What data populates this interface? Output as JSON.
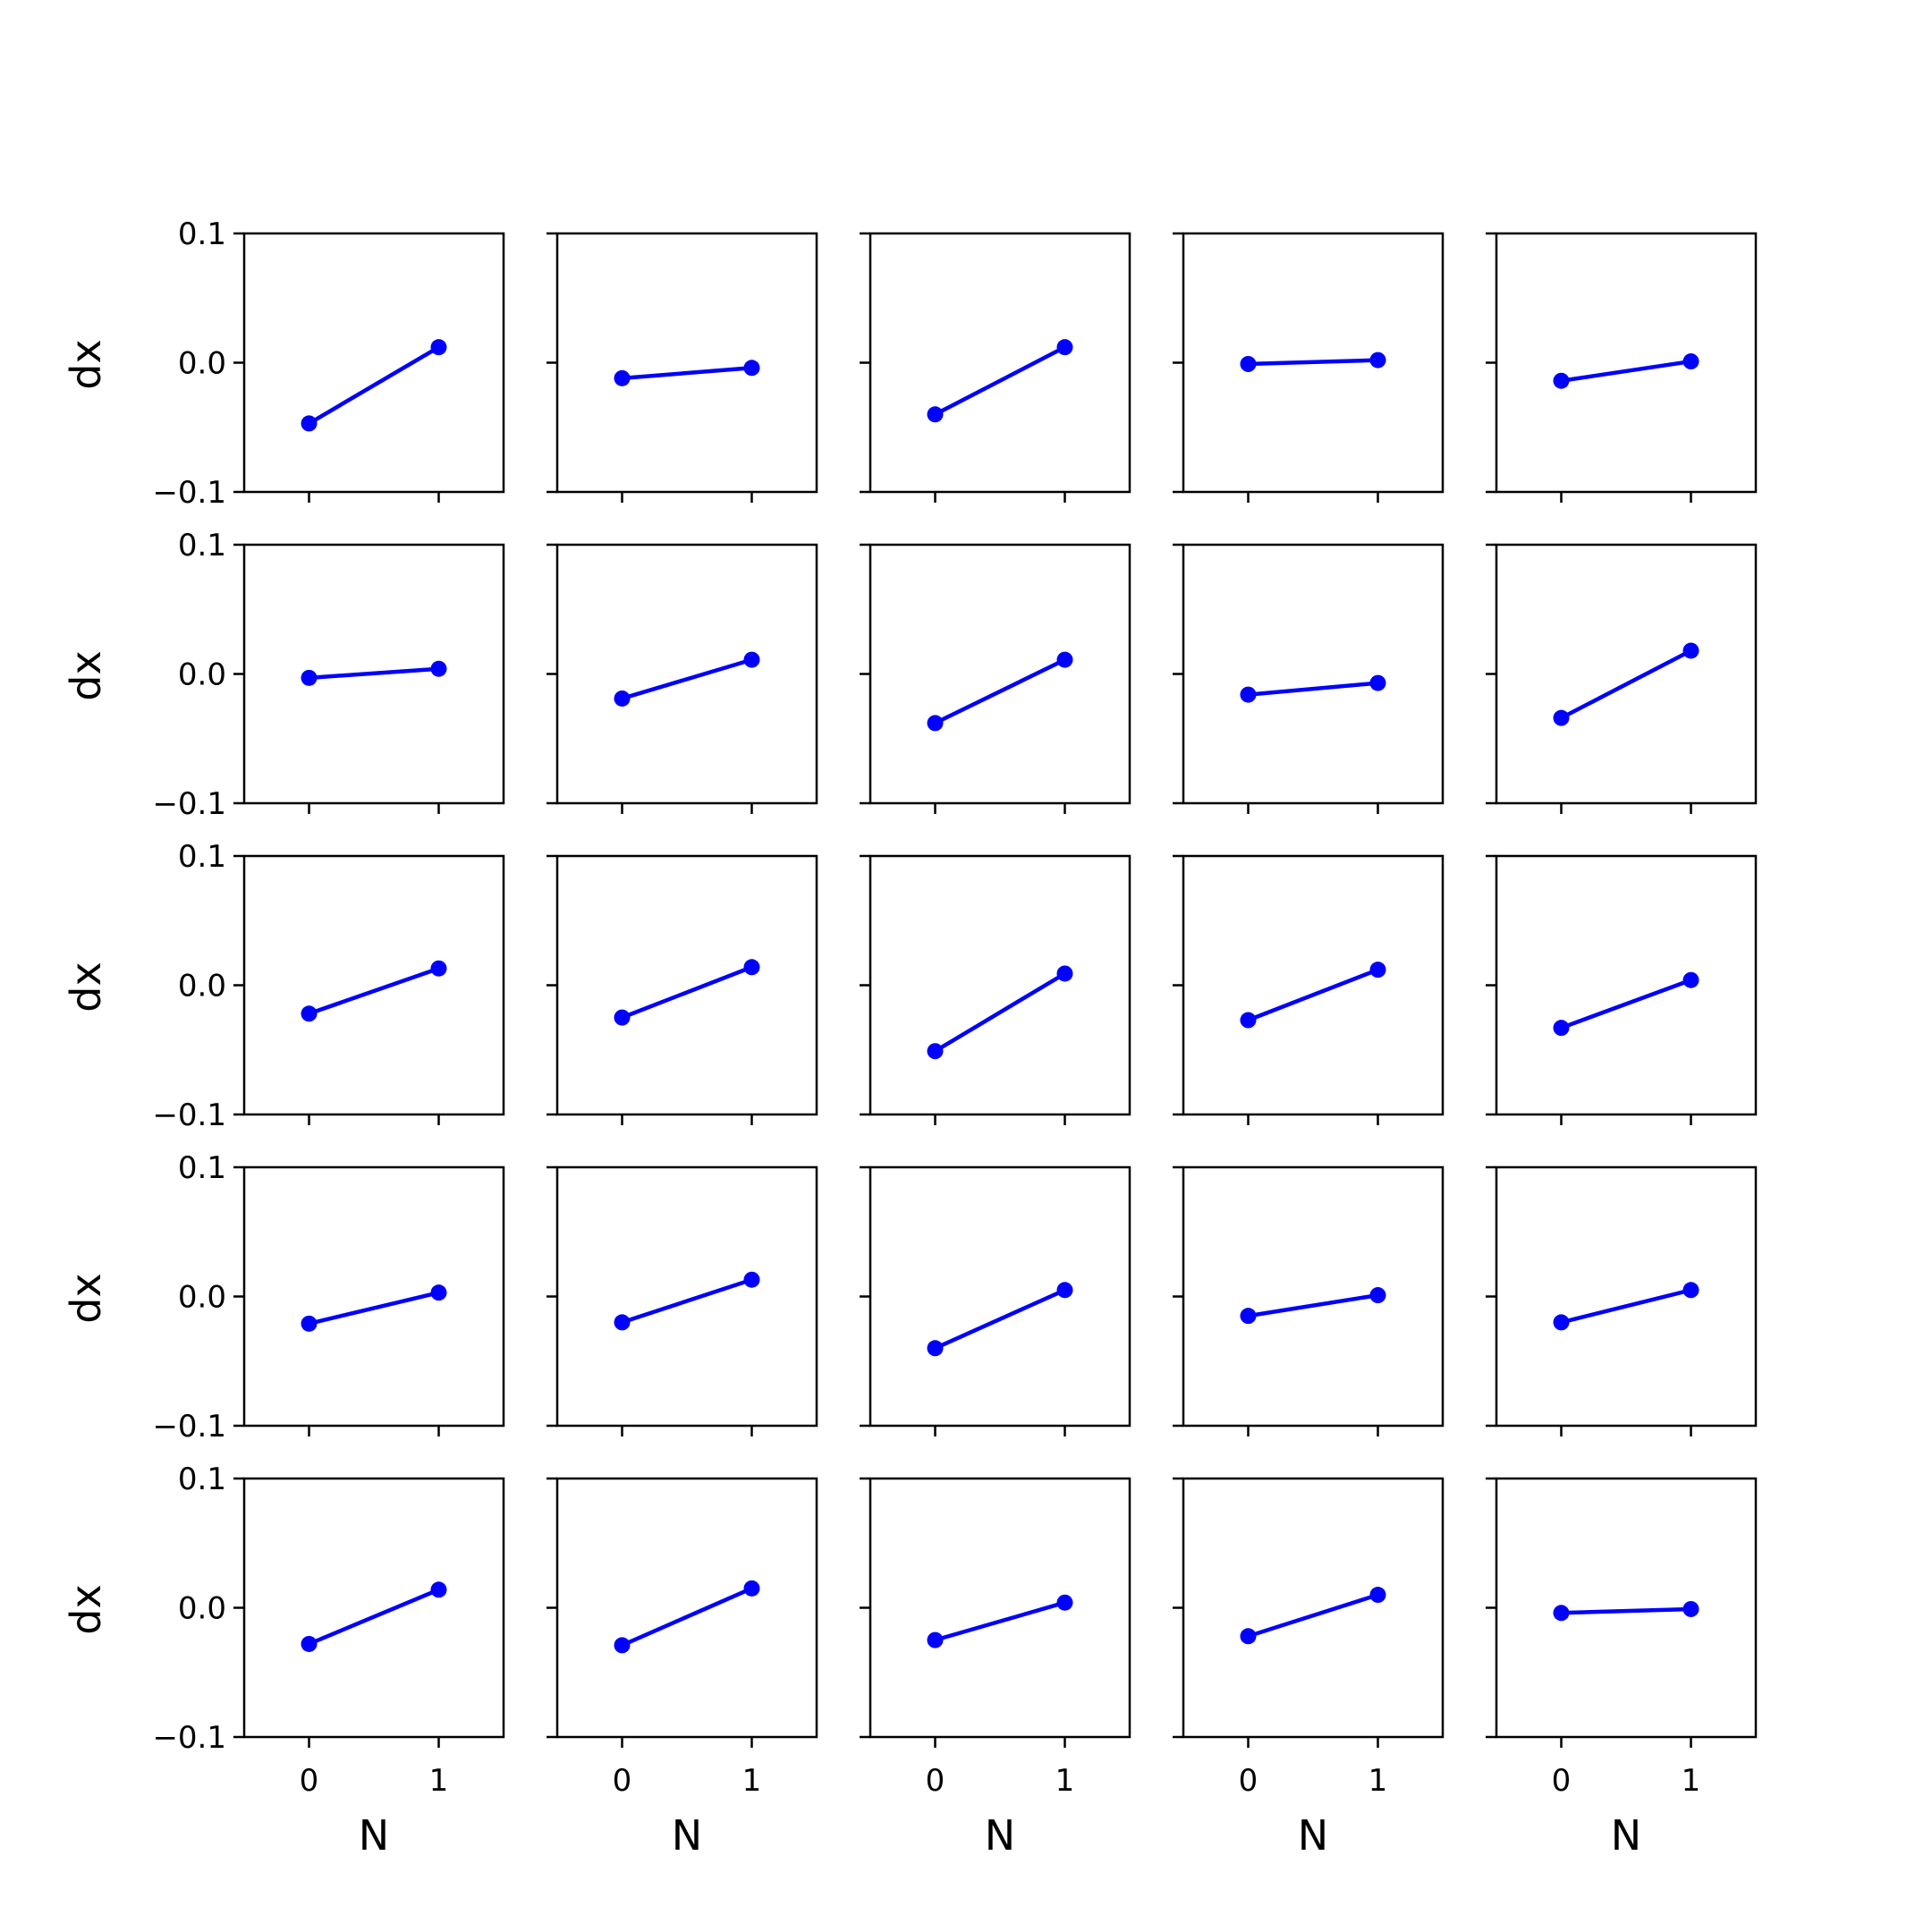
{
  "chart_data": {
    "type": "line",
    "layout": {
      "rows": 5,
      "cols": 5
    },
    "shared_axes": {
      "xlabel": "N",
      "ylabel": "dx",
      "xlim": [
        -0.5,
        1.5
      ],
      "ylim": [
        -0.1,
        0.1
      ],
      "xticks": [
        0,
        1
      ],
      "xtick_labels": [
        "0",
        "1"
      ],
      "yticks": [
        0.1,
        0.0,
        -0.1
      ],
      "ytick_labels": [
        "0.1",
        "0.0",
        "−0.1"
      ]
    },
    "line_color": "#0000ff",
    "panels": [
      {
        "x": [
          0,
          1
        ],
        "y": [
          -0.047,
          0.012
        ]
      },
      {
        "x": [
          0,
          1
        ],
        "y": [
          -0.012,
          -0.004
        ]
      },
      {
        "x": [
          0,
          1
        ],
        "y": [
          -0.04,
          0.012
        ]
      },
      {
        "x": [
          0,
          1
        ],
        "y": [
          -0.001,
          0.002
        ]
      },
      {
        "x": [
          0,
          1
        ],
        "y": [
          -0.014,
          0.001
        ]
      },
      {
        "x": [
          0,
          1
        ],
        "y": [
          -0.003,
          0.004
        ]
      },
      {
        "x": [
          0,
          1
        ],
        "y": [
          -0.019,
          0.011
        ]
      },
      {
        "x": [
          0,
          1
        ],
        "y": [
          -0.038,
          0.011
        ]
      },
      {
        "x": [
          0,
          1
        ],
        "y": [
          -0.016,
          -0.007
        ]
      },
      {
        "x": [
          0,
          1
        ],
        "y": [
          -0.034,
          0.018
        ]
      },
      {
        "x": [
          0,
          1
        ],
        "y": [
          -0.022,
          0.013
        ]
      },
      {
        "x": [
          0,
          1
        ],
        "y": [
          -0.025,
          0.014
        ]
      },
      {
        "x": [
          0,
          1
        ],
        "y": [
          -0.051,
          0.009
        ]
      },
      {
        "x": [
          0,
          1
        ],
        "y": [
          -0.027,
          0.012
        ]
      },
      {
        "x": [
          0,
          1
        ],
        "y": [
          -0.033,
          0.004
        ]
      },
      {
        "x": [
          0,
          1
        ],
        "y": [
          -0.021,
          0.003
        ]
      },
      {
        "x": [
          0,
          1
        ],
        "y": [
          -0.02,
          0.013
        ]
      },
      {
        "x": [
          0,
          1
        ],
        "y": [
          -0.04,
          0.005
        ]
      },
      {
        "x": [
          0,
          1
        ],
        "y": [
          -0.015,
          0.001
        ]
      },
      {
        "x": [
          0,
          1
        ],
        "y": [
          -0.02,
          0.005
        ]
      },
      {
        "x": [
          0,
          1
        ],
        "y": [
          -0.028,
          0.014
        ]
      },
      {
        "x": [
          0,
          1
        ],
        "y": [
          -0.029,
          0.015
        ]
      },
      {
        "x": [
          0,
          1
        ],
        "y": [
          -0.025,
          0.004
        ]
      },
      {
        "x": [
          0,
          1
        ],
        "y": [
          -0.022,
          0.01
        ]
      },
      {
        "x": [
          0,
          1
        ],
        "y": [
          -0.004,
          -0.001
        ]
      }
    ]
  }
}
